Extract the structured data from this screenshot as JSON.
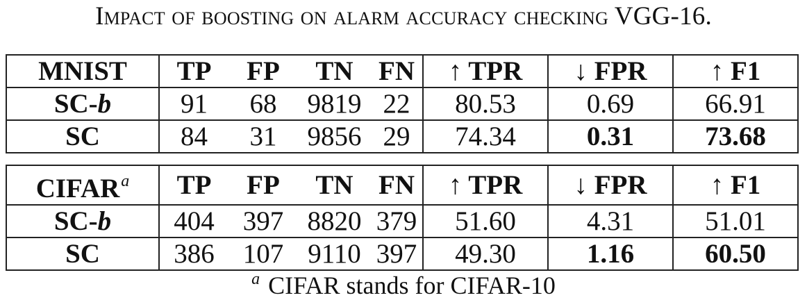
{
  "caption": "Impact of boosting on alarm accuracy checking VGG-16.",
  "tables": [
    {
      "dataset": "MNIST",
      "dataset_sup": "",
      "headers": [
        "TP",
        "FP",
        "TN",
        "FN",
        "↑ TPR",
        "↓ FPR",
        "↑ F1"
      ],
      "rows": [
        {
          "method": "SC-",
          "method_suffix": "b",
          "values": [
            "91",
            "68",
            "9819",
            "22",
            "80.53",
            "0.69",
            "66.91"
          ],
          "bold": [
            false,
            false,
            false,
            false,
            false,
            false,
            false
          ]
        },
        {
          "method": "SC",
          "method_suffix": "",
          "values": [
            "84",
            "31",
            "9856",
            "29",
            "74.34",
            "0.31",
            "73.68"
          ],
          "bold": [
            false,
            false,
            false,
            false,
            false,
            true,
            true
          ]
        }
      ]
    },
    {
      "dataset": "CIFAR",
      "dataset_sup": "a",
      "headers": [
        "TP",
        "FP",
        "TN",
        "FN",
        "↑ TPR",
        "↓ FPR",
        "↑ F1"
      ],
      "rows": [
        {
          "method": "SC-",
          "method_suffix": "b",
          "values": [
            "404",
            "397",
            "8820",
            "379",
            "51.60",
            "4.31",
            "51.01"
          ],
          "bold": [
            false,
            false,
            false,
            false,
            false,
            false,
            false
          ]
        },
        {
          "method": "SC",
          "method_suffix": "",
          "values": [
            "386",
            "107",
            "9110",
            "397",
            "49.30",
            "1.16",
            "60.50"
          ],
          "bold": [
            false,
            false,
            false,
            false,
            false,
            true,
            true
          ]
        }
      ]
    }
  ],
  "footnote": {
    "marker": "a",
    "text": "CIFAR stands for CIFAR-10"
  }
}
